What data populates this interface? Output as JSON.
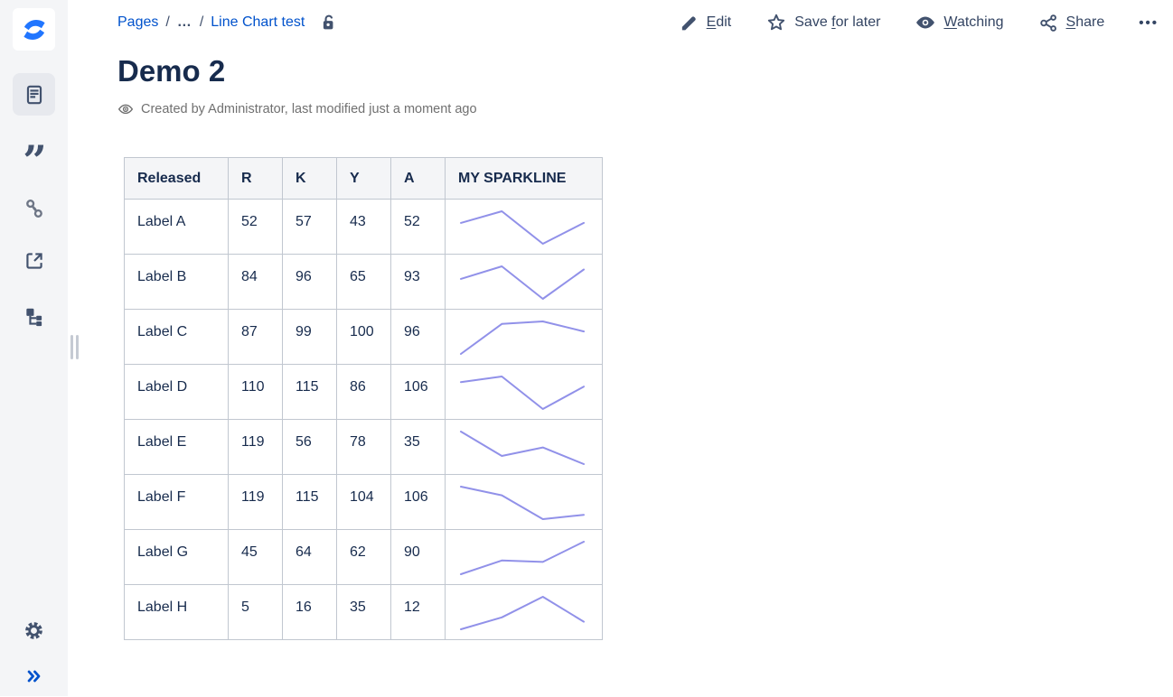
{
  "app": {
    "name": "Confluence"
  },
  "sidebar": {
    "quote_glyph": "”",
    "icons": [
      {
        "name": "page-icon",
        "selected": true
      },
      {
        "name": "quote-icon",
        "selected": false
      },
      {
        "name": "link-icon",
        "selected": false
      },
      {
        "name": "external-link-icon",
        "selected": false
      },
      {
        "name": "page-tree-icon",
        "selected": false
      }
    ],
    "bottom_icons": [
      {
        "name": "gear-icon"
      },
      {
        "name": "expand-icon"
      }
    ]
  },
  "breadcrumb": {
    "separator": "/",
    "items": [
      {
        "label": "Pages",
        "type": "link"
      },
      {
        "label": "…",
        "type": "ellipsis"
      },
      {
        "label": "Line Chart test",
        "type": "link"
      }
    ],
    "lock_icon": "unlocked-padlock-icon"
  },
  "actions": [
    {
      "id": "edit",
      "label": "Edit",
      "underline": "E",
      "icon": "pencil-icon"
    },
    {
      "id": "save-for-later",
      "label": "Save for later",
      "underline": "f",
      "icon": "star-icon"
    },
    {
      "id": "watching",
      "label": "Watching",
      "underline": "W",
      "icon": "eye-icon"
    },
    {
      "id": "share",
      "label": "Share",
      "underline": "S",
      "icon": "share-icon"
    }
  ],
  "more_label": "•••",
  "page": {
    "title": "Demo 2",
    "byline": "Created by Administrator, last modified just a moment ago"
  },
  "table": {
    "columns": [
      "Released",
      "R",
      "K",
      "Y",
      "A",
      "MY SPARKLINE"
    ],
    "rows": [
      {
        "label": "Label A",
        "values": [
          52,
          57,
          43,
          52
        ]
      },
      {
        "label": "Label B",
        "values": [
          84,
          96,
          65,
          93
        ]
      },
      {
        "label": "Label C",
        "values": [
          87,
          99,
          100,
          96
        ]
      },
      {
        "label": "Label D",
        "values": [
          110,
          115,
          86,
          106
        ]
      },
      {
        "label": "Label E",
        "values": [
          119,
          56,
          78,
          35
        ]
      },
      {
        "label": "Label F",
        "values": [
          119,
          115,
          104,
          106
        ]
      },
      {
        "label": "Label G",
        "values": [
          45,
          64,
          62,
          90
        ]
      },
      {
        "label": "Label H",
        "values": [
          5,
          16,
          35,
          12
        ]
      }
    ]
  },
  "sparkline": {
    "type": "line",
    "color": "#9191e9",
    "normalization": "per-row min-max"
  },
  "colors": {
    "link": "#0052cc",
    "text": "#172b4d",
    "icon": "#42526e",
    "muted": "#707070",
    "sidebar_bg": "#f4f5f7",
    "selected_bg": "#e7e9ee",
    "table_border": "#c1c7d0",
    "header_bg": "#f4f5f7",
    "sparkline": "#9191e9",
    "logo_blue": "#2176ff"
  }
}
